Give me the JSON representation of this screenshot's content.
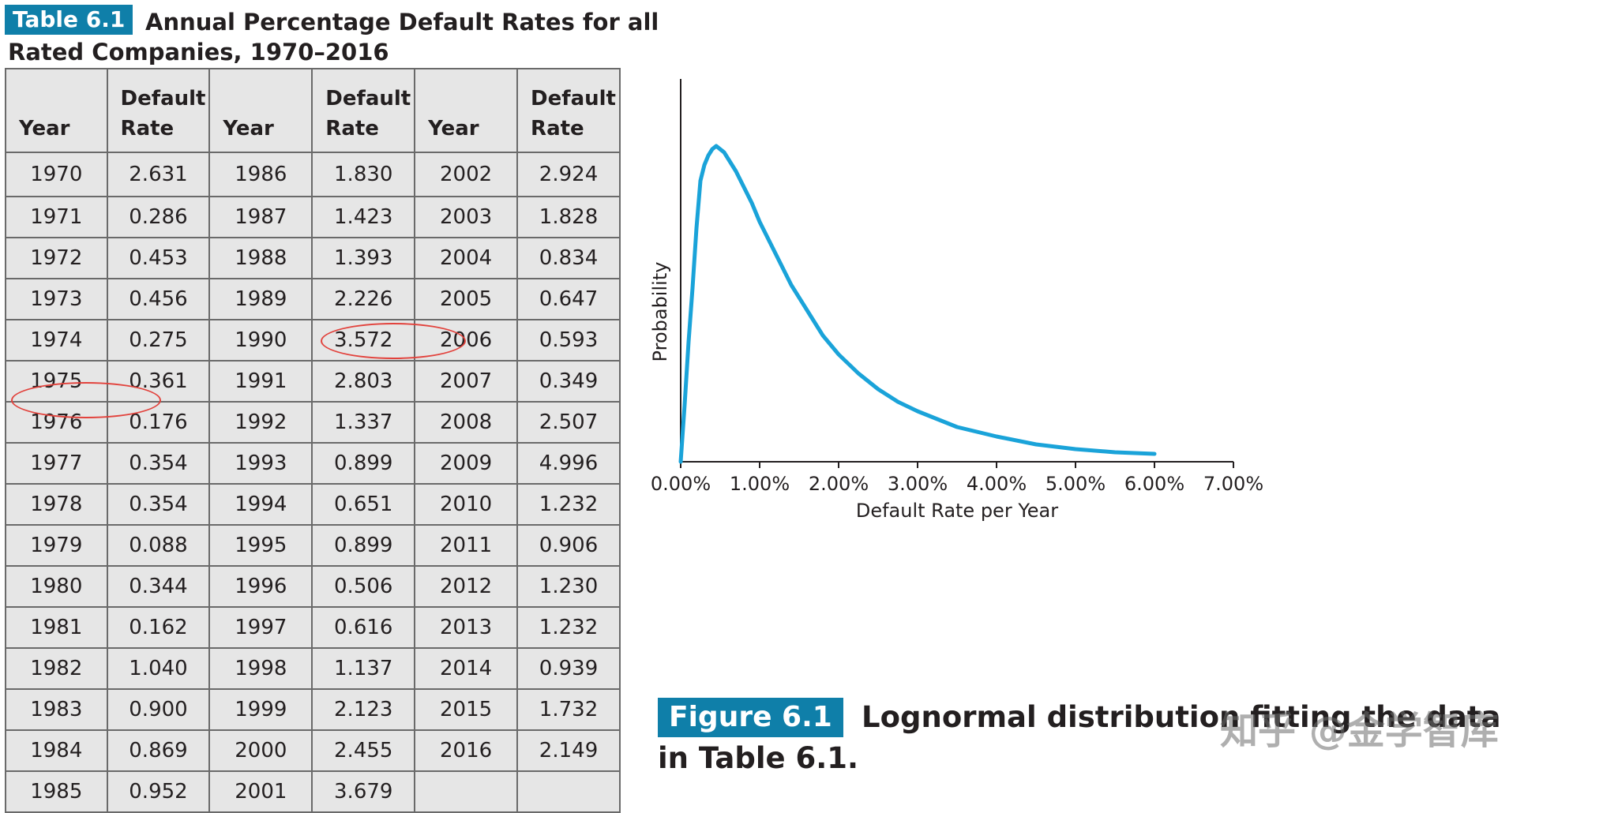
{
  "table": {
    "badge": "Table 6.1",
    "title_line1": "Annual Percentage Default Rates for all",
    "title_line2": "Rated Companies, 1970–2016",
    "headers": {
      "year": "Year",
      "rate_line1": "Default",
      "rate_line2": "Rate"
    },
    "rows": [
      [
        "1970",
        "2.631",
        "1986",
        "1.830",
        "2002",
        "2.924"
      ],
      [
        "1971",
        "0.286",
        "1987",
        "1.423",
        "2003",
        "1.828"
      ],
      [
        "1972",
        "0.453",
        "1988",
        "1.393",
        "2004",
        "0.834"
      ],
      [
        "1973",
        "0.456",
        "1989",
        "2.226",
        "2005",
        "0.647"
      ],
      [
        "1974",
        "0.275",
        "1990",
        "3.572",
        "2006",
        "0.593"
      ],
      [
        "1975",
        "0.361",
        "1991",
        "2.803",
        "2007",
        "0.349"
      ],
      [
        "1976",
        "0.176",
        "1992",
        "1.337",
        "2008",
        "2.507"
      ],
      [
        "1977",
        "0.354",
        "1993",
        "0.899",
        "2009",
        "4.996"
      ],
      [
        "1978",
        "0.354",
        "1994",
        "0.651",
        "2010",
        "1.232"
      ],
      [
        "1979",
        "0.088",
        "1995",
        "0.899",
        "2011",
        "0.906"
      ],
      [
        "1980",
        "0.344",
        "1996",
        "0.506",
        "2012",
        "1.230"
      ],
      [
        "1981",
        "0.162",
        "1997",
        "0.616",
        "2013",
        "1.232"
      ],
      [
        "1982",
        "1.040",
        "1998",
        "1.137",
        "2014",
        "0.939"
      ],
      [
        "1983",
        "0.900",
        "1999",
        "2.123",
        "2015",
        "1.732"
      ],
      [
        "1984",
        "0.869",
        "2000",
        "2.455",
        "2016",
        "2.149"
      ],
      [
        "1985",
        "0.952",
        "2001",
        "3.679",
        "",
        ""
      ]
    ]
  },
  "figure": {
    "badge": "Figure 6.1",
    "caption_line1": "Lognormal distribution fitting the data",
    "caption_line2": "in Table 6.1."
  },
  "watermark": "知乎 @金学智库",
  "colors": {
    "accent": "#0f7fa9",
    "curve": "#1aa3d9",
    "highlight": "#e2423c",
    "table_bg": "#e6e6e6"
  },
  "chart_data": {
    "type": "line",
    "title": "",
    "xlabel": "Default Rate per Year",
    "ylabel": "Probability",
    "xlim": [
      0,
      7
    ],
    "x_tick_labels": [
      "0.00%",
      "1.00%",
      "2.00%",
      "3.00%",
      "4.00%",
      "5.00%",
      "6.00%",
      "7.00%"
    ],
    "y_ticks_shown": false,
    "grid": false,
    "series": [
      {
        "x": [
          0.0,
          0.05,
          0.1,
          0.15,
          0.2,
          0.25,
          0.3,
          0.35,
          0.4,
          0.45,
          0.5,
          0.55,
          0.6,
          0.65,
          0.7,
          0.8,
          0.9,
          1.0,
          1.2,
          1.4,
          1.6,
          1.8,
          2.0,
          2.25,
          2.5,
          2.75,
          3.0,
          3.5,
          4.0,
          4.5,
          5.0,
          5.5,
          6.0
        ],
        "y": [
          0.0,
          0.18,
          0.38,
          0.55,
          0.74,
          0.89,
          0.94,
          0.97,
          0.99,
          1.0,
          0.99,
          0.98,
          0.96,
          0.94,
          0.92,
          0.87,
          0.82,
          0.76,
          0.66,
          0.56,
          0.48,
          0.4,
          0.34,
          0.28,
          0.23,
          0.19,
          0.16,
          0.11,
          0.08,
          0.055,
          0.04,
          0.03,
          0.025
        ]
      }
    ]
  }
}
